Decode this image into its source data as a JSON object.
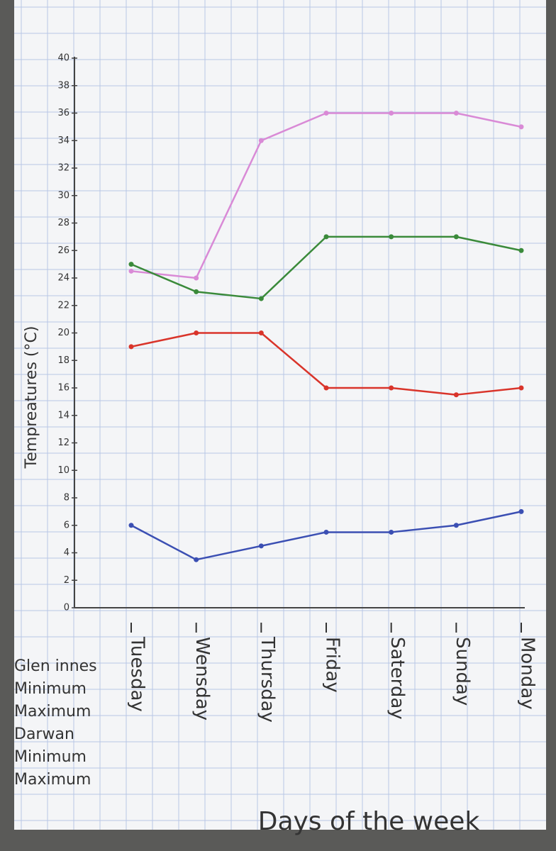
{
  "chart_data": {
    "type": "line",
    "ylabel": "Tempreatures (°C)",
    "xlabel": "Days of the week",
    "categories": [
      "Tuesday",
      "Wensday",
      "Thursday",
      "Friday",
      "Saterday",
      "Sunday",
      "Monday"
    ],
    "series": [
      {
        "group": "Glen innes",
        "name": "Minimum",
        "color": "#3b4fb3",
        "values": [
          6,
          3.5,
          4.5,
          5.5,
          5.5,
          6,
          7
        ]
      },
      {
        "group": "Glen innes",
        "name": "Maximum",
        "color": "#d9342a",
        "values": [
          19,
          20,
          20,
          16,
          16,
          15.5,
          16
        ]
      },
      {
        "group": "Darwan",
        "name": "Minimum",
        "color": "#d98ad6",
        "values": [
          24.5,
          24,
          34,
          36,
          36,
          36,
          35
        ]
      },
      {
        "group": "Darwan",
        "name": "Maximum",
        "color": "#3a8a3a",
        "values": [
          25,
          23,
          22.5,
          27,
          27,
          27,
          26
        ]
      }
    ],
    "ylim": [
      0,
      40
    ],
    "yticks": [
      0,
      2,
      4,
      6,
      8,
      10,
      12,
      14,
      16,
      18,
      20,
      22,
      24,
      26,
      28,
      30,
      32,
      34,
      36,
      38,
      40
    ],
    "grid": false
  }
}
